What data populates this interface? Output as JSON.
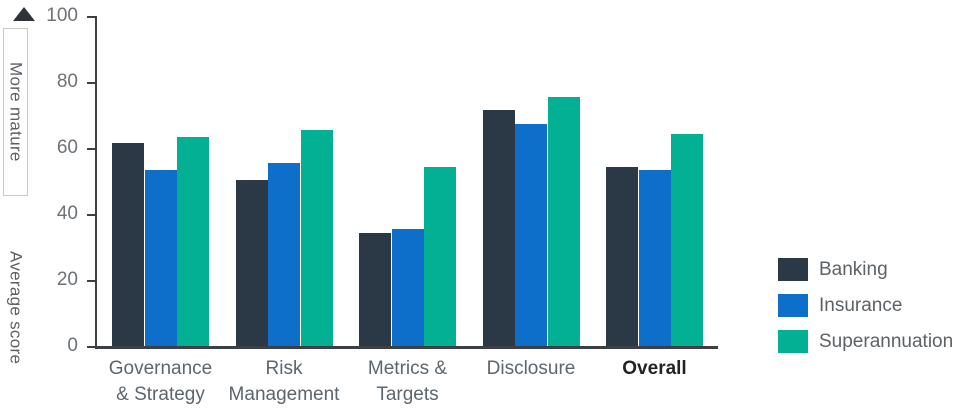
{
  "chart_data": {
    "type": "bar",
    "title": "",
    "xlabel": "",
    "ylabel": "Average score",
    "ylim": [
      0,
      100
    ],
    "y_ticks": [
      0,
      20,
      40,
      60,
      80,
      100
    ],
    "grid": false,
    "legend_position": "right",
    "annotations": {
      "more_mature": "More mature",
      "direction_arrow": "up"
    },
    "categories": [
      {
        "label": "Governance & Strategy",
        "lines": [
          "Governance",
          "& Strategy"
        ],
        "emphasis": false
      },
      {
        "label": "Risk Management",
        "lines": [
          "Risk",
          "Management"
        ],
        "emphasis": false
      },
      {
        "label": "Metrics & Targets",
        "lines": [
          "Metrics &",
          "Targets"
        ],
        "emphasis": false
      },
      {
        "label": "Disclosure",
        "lines": [
          "Disclosure"
        ],
        "emphasis": false
      },
      {
        "label": "Overall",
        "lines": [
          "Overall"
        ],
        "emphasis": true
      }
    ],
    "series": [
      {
        "name": "Banking",
        "color": "#2b3845",
        "values": [
          62,
          51,
          35,
          72,
          55
        ]
      },
      {
        "name": "Insurance",
        "color": "#0d6fc9",
        "values": [
          54,
          56,
          36,
          68,
          54
        ]
      },
      {
        "name": "Superannuation",
        "color": "#04b093",
        "values": [
          64,
          66,
          55,
          76,
          65
        ]
      }
    ]
  },
  "colors": {
    "axis": "#3c4044",
    "tick_label": "#6d7276",
    "category_label": "#5d666d",
    "emphasis_label": "#1f2326",
    "legend_label": "#5d6266",
    "annotation_box_border": "#c9c9c9",
    "arrow": "#2f3439"
  }
}
